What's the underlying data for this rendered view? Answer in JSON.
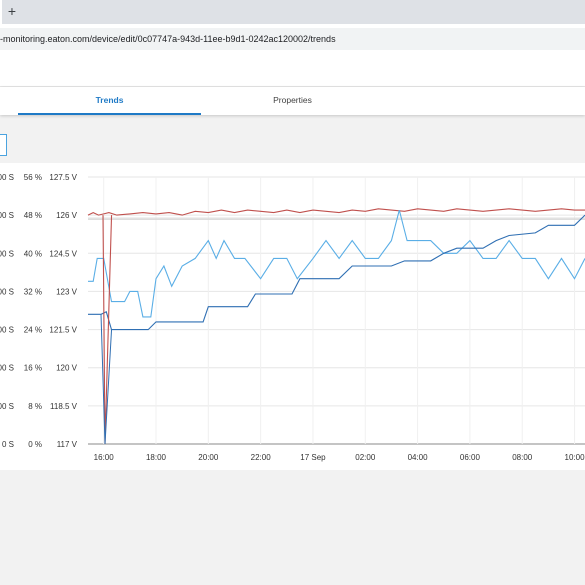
{
  "browser": {
    "new_tab_glyph": "+",
    "url": "-monitoring.eaton.com/device/edit/0c07747a-943d-11ee-b9d1-0242ac120002/trends"
  },
  "tabs": [
    {
      "label": "Trends",
      "active": true
    },
    {
      "label": "Properties",
      "active": false
    }
  ],
  "colors": {
    "accent": "#1f7ac6",
    "series_red": "#c0504d",
    "series_blue_light": "#5aaee6",
    "series_blue_dark": "#2f6fb3"
  },
  "chart_data": {
    "type": "line",
    "x_tick_labels": [
      "16:00",
      "18:00",
      "20:00",
      "22:00",
      "17 Sep",
      "02:00",
      "04:00",
      "06:00",
      "08:00",
      "10:00"
    ],
    "x_range": [
      "15:24",
      "10:24"
    ],
    "y_axes": [
      {
        "unit": "S",
        "ticks": [
          "0 S",
          "00 S",
          "00 S",
          "00 S",
          "00 S",
          "00 S",
          "00 S",
          "00 S"
        ]
      },
      {
        "unit": "%",
        "ticks": [
          "0 %",
          "8 %",
          "16 %",
          "24 %",
          "32 %",
          "40 %",
          "48 %",
          "56 %"
        ],
        "ylim": [
          0,
          56
        ]
      },
      {
        "unit": "V",
        "ticks": [
          "117 V",
          "118.5 V",
          "120 V",
          "121.5 V",
          "123 V",
          "124.5 V",
          "126 V",
          "127.5 V"
        ],
        "ylim": [
          117,
          127.5
        ]
      }
    ],
    "grid": true,
    "series": [
      {
        "color": "#c0504d",
        "axis": "V",
        "points": [
          [
            15.4,
            126.0
          ],
          [
            15.6,
            126.1
          ],
          [
            15.8,
            126.0
          ],
          [
            16.0,
            126.05
          ],
          [
            16.2,
            126.1
          ],
          [
            16.5,
            126.0
          ],
          [
            17.0,
            126.05
          ],
          [
            17.5,
            126.1
          ],
          [
            18.0,
            126.05
          ],
          [
            18.5,
            126.1
          ],
          [
            19.0,
            126.0
          ],
          [
            19.5,
            126.15
          ],
          [
            20.0,
            126.1
          ],
          [
            20.5,
            126.2
          ],
          [
            21.0,
            126.1
          ],
          [
            21.5,
            126.2
          ],
          [
            22.0,
            126.15
          ],
          [
            22.5,
            126.1
          ],
          [
            23.0,
            126.2
          ],
          [
            23.5,
            126.1
          ],
          [
            24.0,
            126.2
          ],
          [
            24.5,
            126.15
          ],
          [
            25.0,
            126.1
          ],
          [
            25.5,
            126.2
          ],
          [
            26.0,
            126.15
          ],
          [
            26.5,
            126.25
          ],
          [
            27.0,
            126.2
          ],
          [
            27.5,
            126.15
          ],
          [
            28.0,
            126.25
          ],
          [
            28.5,
            126.2
          ],
          [
            29.0,
            126.15
          ],
          [
            29.5,
            126.25
          ],
          [
            30.0,
            126.2
          ],
          [
            30.5,
            126.15
          ],
          [
            31.0,
            126.2
          ],
          [
            31.5,
            126.25
          ],
          [
            32.0,
            126.2
          ],
          [
            32.5,
            126.15
          ],
          [
            33.0,
            126.2
          ],
          [
            33.5,
            126.25
          ],
          [
            34.0,
            126.2
          ],
          [
            34.4,
            126.2
          ]
        ]
      },
      {
        "color": "#5aaee6",
        "axis": "V",
        "points": [
          [
            15.4,
            123.4
          ],
          [
            15.6,
            123.4
          ],
          [
            15.75,
            124.3
          ],
          [
            16.0,
            124.3
          ],
          [
            16.3,
            122.6
          ],
          [
            16.8,
            122.6
          ],
          [
            17.0,
            123.0
          ],
          [
            17.3,
            123.0
          ],
          [
            17.5,
            122.0
          ],
          [
            17.8,
            122.0
          ],
          [
            18.0,
            123.5
          ],
          [
            18.3,
            124.0
          ],
          [
            18.6,
            123.2
          ],
          [
            19.0,
            124.0
          ],
          [
            19.5,
            124.3
          ],
          [
            20.0,
            125.0
          ],
          [
            20.3,
            124.3
          ],
          [
            20.6,
            125.0
          ],
          [
            21.0,
            124.3
          ],
          [
            21.4,
            124.3
          ],
          [
            22.0,
            123.5
          ],
          [
            22.5,
            124.3
          ],
          [
            23.0,
            124.3
          ],
          [
            23.4,
            123.5
          ],
          [
            24.0,
            124.3
          ],
          [
            24.5,
            125.0
          ],
          [
            25.0,
            124.3
          ],
          [
            25.5,
            125.0
          ],
          [
            26.0,
            124.3
          ],
          [
            26.5,
            124.3
          ],
          [
            27.0,
            125.0
          ],
          [
            27.3,
            126.2
          ],
          [
            27.6,
            125.0
          ],
          [
            28.0,
            125.0
          ],
          [
            28.5,
            125.0
          ],
          [
            29.0,
            124.5
          ],
          [
            29.5,
            124.5
          ],
          [
            30.0,
            125.0
          ],
          [
            30.5,
            124.3
          ],
          [
            31.0,
            124.3
          ],
          [
            31.5,
            125.0
          ],
          [
            32.0,
            124.3
          ],
          [
            32.5,
            124.3
          ],
          [
            33.0,
            123.5
          ],
          [
            33.5,
            124.3
          ],
          [
            34.0,
            123.5
          ],
          [
            34.4,
            124.3
          ]
        ]
      },
      {
        "color": "#2f6fb3",
        "axis": "V",
        "points": [
          [
            15.4,
            122.1
          ],
          [
            15.9,
            122.1
          ],
          [
            16.1,
            122.2
          ],
          [
            16.3,
            121.5
          ],
          [
            17.0,
            121.5
          ],
          [
            17.7,
            121.5
          ],
          [
            18.0,
            121.8
          ],
          [
            19.0,
            121.8
          ],
          [
            19.8,
            121.8
          ],
          [
            20.0,
            122.4
          ],
          [
            21.0,
            122.4
          ],
          [
            21.5,
            122.4
          ],
          [
            21.8,
            122.9
          ],
          [
            22.5,
            122.9
          ],
          [
            23.2,
            122.9
          ],
          [
            23.5,
            123.5
          ],
          [
            24.5,
            123.5
          ],
          [
            25.0,
            123.5
          ],
          [
            25.5,
            124.0
          ],
          [
            26.5,
            124.0
          ],
          [
            27.0,
            124.0
          ],
          [
            27.5,
            124.2
          ],
          [
            28.5,
            124.2
          ],
          [
            29.0,
            124.5
          ],
          [
            29.5,
            124.7
          ],
          [
            30.5,
            124.7
          ],
          [
            31.0,
            125.0
          ],
          [
            31.5,
            125.2
          ],
          [
            32.5,
            125.3
          ],
          [
            33.0,
            125.6
          ],
          [
            33.5,
            125.6
          ],
          [
            34.0,
            125.6
          ],
          [
            34.4,
            126.0
          ]
        ]
      }
    ]
  }
}
